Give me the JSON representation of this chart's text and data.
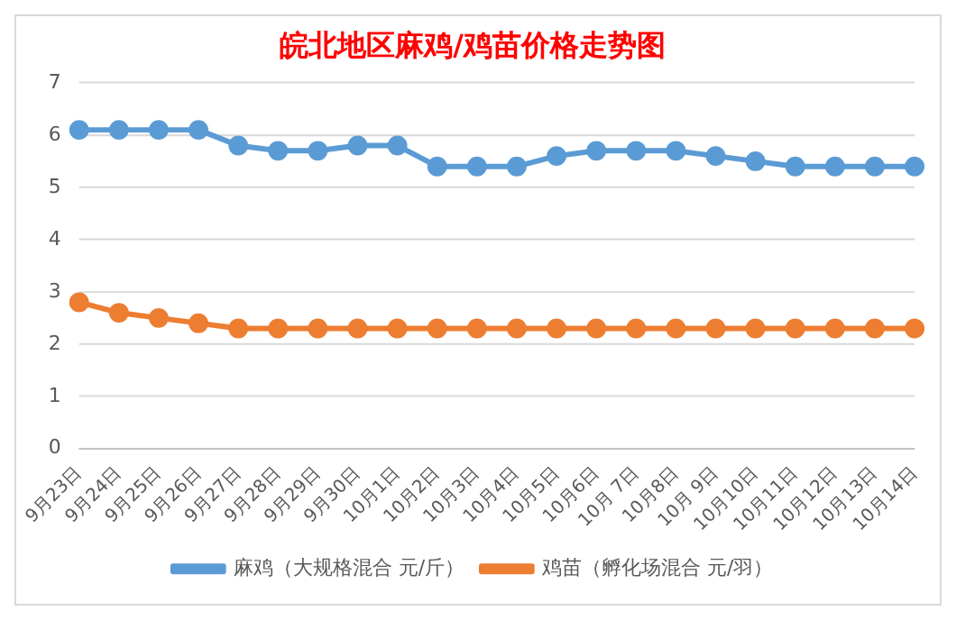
{
  "chart_data": {
    "type": "line",
    "title": "皖北地区麻鸡/鸡苗价格走势图",
    "categories": [
      "9月23日",
      "9月24日",
      "9月25日",
      "9月26日",
      "9月27日",
      "9月28日",
      "9月29日",
      "9月30日",
      "10月1日",
      "10月2日",
      "10月3日",
      "10月4日",
      "10月5日",
      "10月6日",
      "10月 7日",
      "10月8日",
      "10月 9日",
      "10月10日",
      "10月11日",
      "10月12日",
      "10月13日",
      "10月14日"
    ],
    "series": [
      {
        "name": "麻鸡（大规格混合 元/斤）",
        "color": "#5b9bd5",
        "values": [
          6.1,
          6.1,
          6.1,
          6.1,
          5.8,
          5.7,
          5.7,
          5.8,
          5.8,
          5.4,
          5.4,
          5.4,
          5.6,
          5.7,
          5.7,
          5.7,
          5.6,
          5.5,
          5.4,
          5.4,
          5.4,
          5.4
        ]
      },
      {
        "name": "鸡苗（孵化场混合 元/羽）",
        "color": "#ed7d31",
        "values": [
          2.8,
          2.6,
          2.5,
          2.4,
          2.3,
          2.3,
          2.3,
          2.3,
          2.3,
          2.3,
          2.3,
          2.3,
          2.3,
          2.3,
          2.3,
          2.3,
          2.3,
          2.3,
          2.3,
          2.3,
          2.3,
          2.3
        ]
      }
    ],
    "ylim": [
      0,
      7
    ],
    "yticks": [
      0,
      1,
      2,
      3,
      4,
      5,
      6,
      7
    ],
    "grid": "y",
    "legend": "bottom",
    "marker": "circle",
    "line_style": "solid"
  }
}
